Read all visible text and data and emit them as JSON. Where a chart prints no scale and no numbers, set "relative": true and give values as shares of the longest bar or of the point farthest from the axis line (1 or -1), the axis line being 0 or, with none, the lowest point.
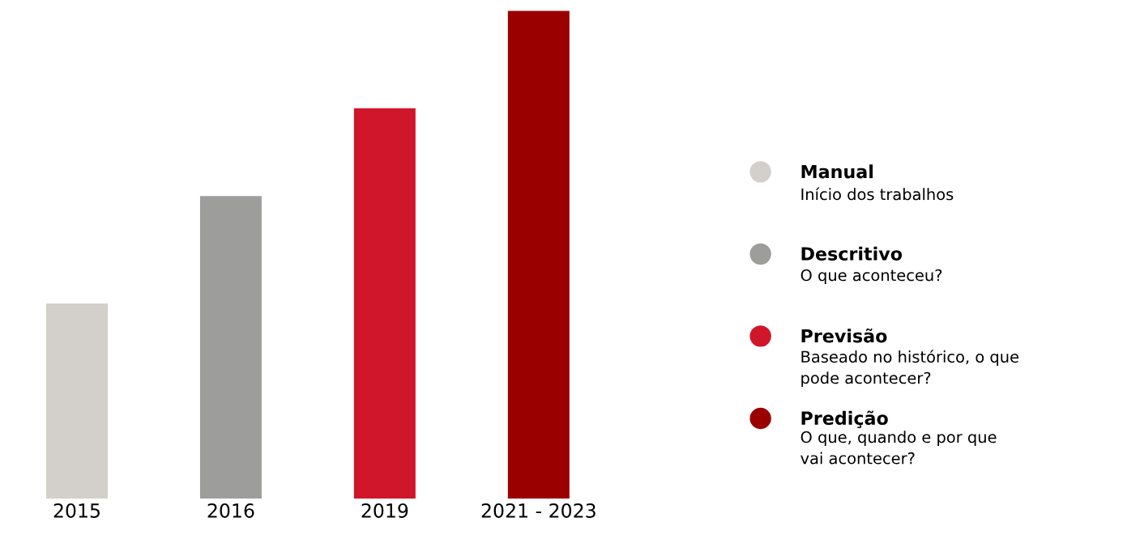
{
  "chart_data": {
    "type": "bar",
    "relative": true,
    "categories": [
      "2015",
      "2016",
      "2019",
      "2021 - 2023"
    ],
    "series": [
      {
        "name": "Manual",
        "color": "#d3cfca",
        "values": [
          0.4,
          null,
          null,
          null
        ]
      },
      {
        "name": "Descritivo",
        "color": "#9d9d9c",
        "values": [
          null,
          0.62,
          null,
          null
        ]
      },
      {
        "name": "Previsão",
        "color": "#d0162a",
        "values": [
          null,
          null,
          0.8,
          null
        ]
      },
      {
        "name": "Predição",
        "color": "#9b0000",
        "values": [
          null,
          null,
          null,
          1.0
        ]
      }
    ],
    "annotations": [
      "Início dos trabalhos",
      "O que aconteceu?",
      "Baseado no histórico, o que\npode acontecer?",
      "O que, quando e por que\nvai acontecer?"
    ],
    "legend": "right",
    "grid": false,
    "marker": "circle"
  }
}
